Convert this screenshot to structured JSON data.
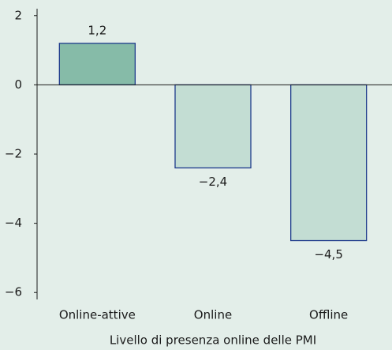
{
  "chart_data": {
    "type": "bar",
    "x_label": "Livello di presenza online delle PMI",
    "categories": [
      "Online-attive",
      "Online",
      "Offline"
    ],
    "values": [
      1.2,
      -2.4,
      -4.5
    ],
    "value_labels": [
      "1,2",
      "−2,4",
      "−4,5"
    ],
    "colors": [
      "#86bba8",
      "#c3ddd3",
      "#c3ddd3"
    ],
    "edge_color": "#1f3b8c",
    "ylim": [
      -6.2,
      2.2
    ],
    "yticks": [
      2,
      0,
      {
        "value": -2,
        "label": "−2"
      },
      {
        "value": -4,
        "label": "−4"
      },
      {
        "value": -6,
        "label": "−6"
      }
    ]
  }
}
